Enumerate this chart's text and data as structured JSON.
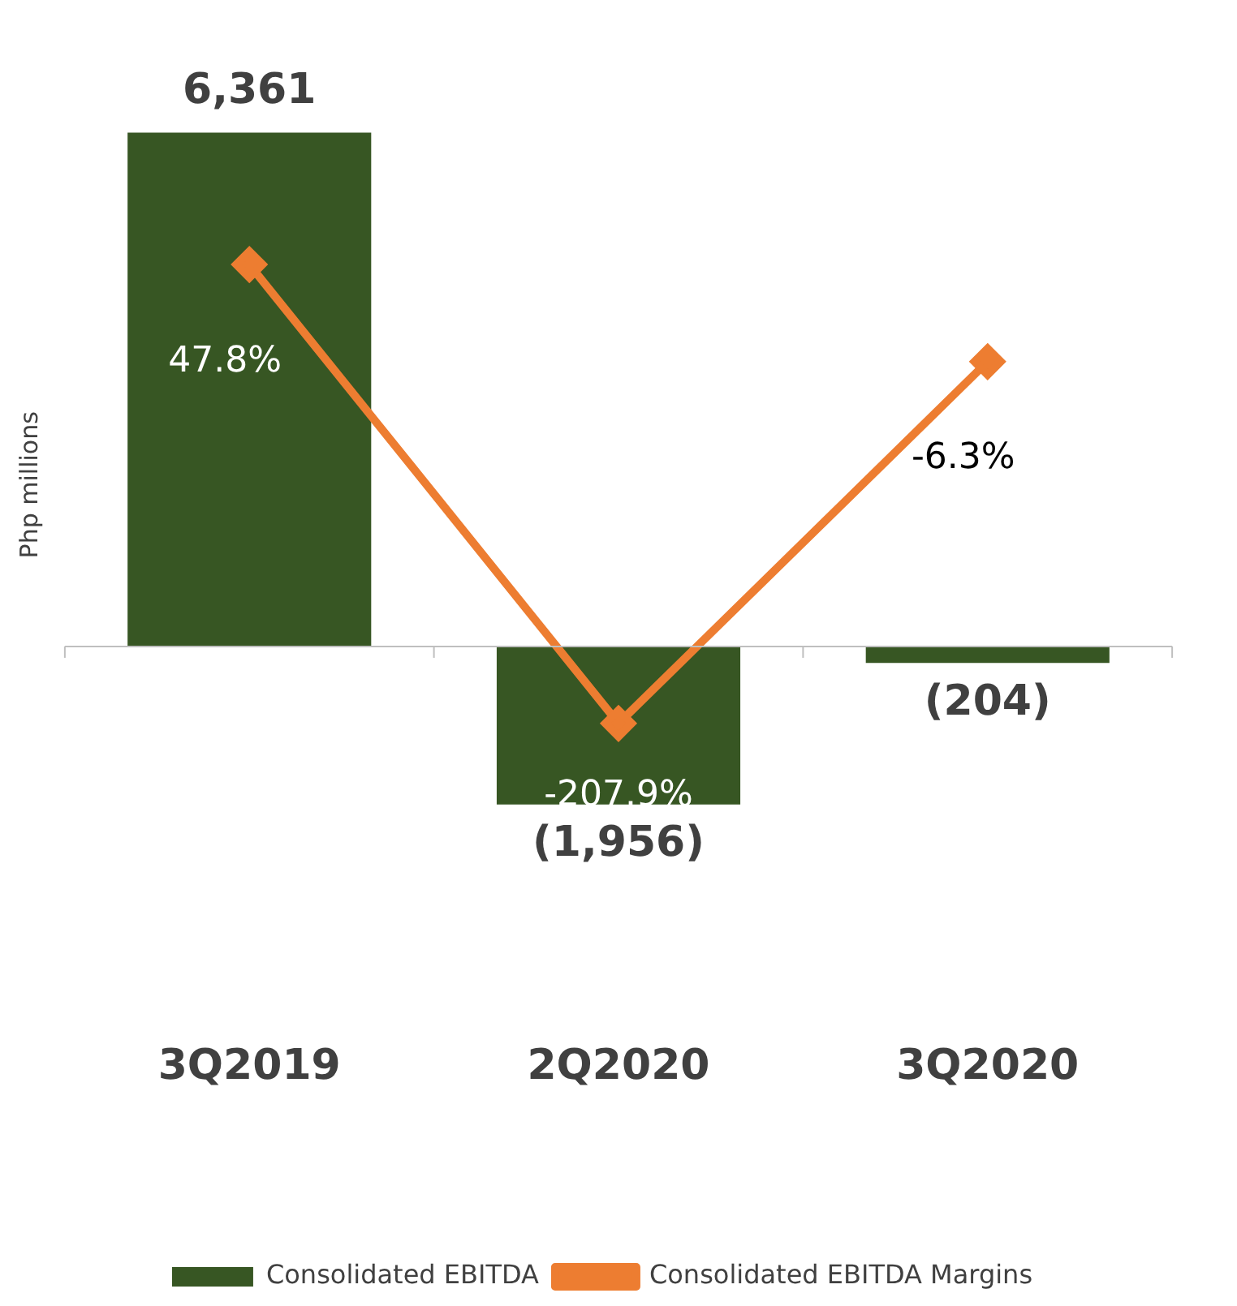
{
  "chart_data": {
    "type": "bar",
    "ylabel": "Php millions",
    "categories": [
      "3Q2019",
      "2Q2020",
      "3Q2020"
    ],
    "legend": "bottom",
    "grid": false,
    "tick_labels": "x",
    "series": [
      {
        "name": "Consolidated EBITDA",
        "color": "#375623",
        "values": [
          6361,
          -1956,
          -204
        ],
        "value_labels": [
          "6,361",
          "(1,956)",
          "(204)"
        ]
      },
      {
        "name": "Consolidated EBITDA Margins",
        "type": "line",
        "axis": "y2",
        "color": "#ed7d31",
        "marker": "diamond",
        "values": [
          47.8,
          -207.9,
          -6.3
        ],
        "value_labels": [
          "47.8%",
          "-207.9%",
          "-6.3%"
        ]
      }
    ]
  }
}
